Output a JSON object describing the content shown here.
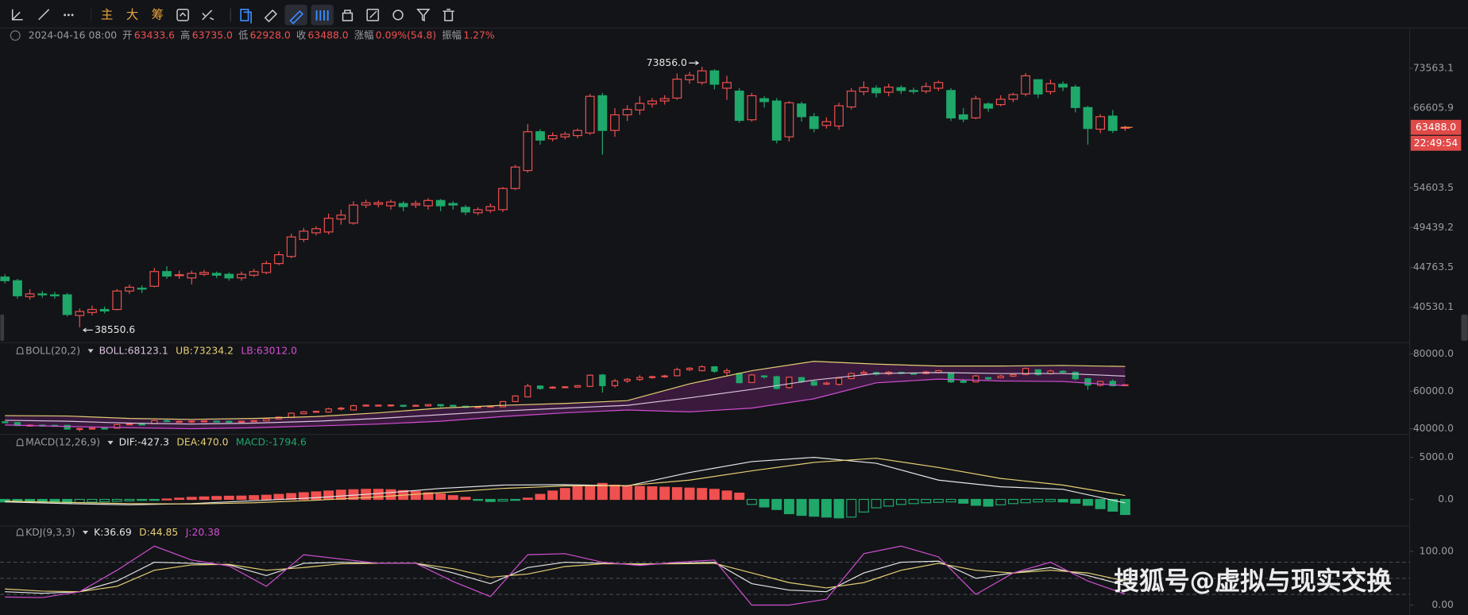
{
  "toolbar": {
    "buttons": [
      "主",
      "大",
      "筹"
    ]
  },
  "info_bar": {
    "time": "2024-04-16 08:00",
    "fields": [
      {
        "label": "开",
        "value": "63433.6"
      },
      {
        "label": "高",
        "value": "63735.0"
      },
      {
        "label": "低",
        "value": "62928.0"
      },
      {
        "label": "收",
        "value": "63488.0"
      },
      {
        "label": "涨幅",
        "value": "0.09%(54.8)"
      },
      {
        "label": "振幅",
        "value": "1.27%"
      }
    ]
  },
  "watermark": "搜狐号@虚拟与现实交换",
  "chart_data": [
    {
      "type": "candlestick",
      "log": true,
      "up_color": "#f0504f",
      "down_color": "#1fa86a",
      "ylim": [
        37190,
        77620
      ],
      "yticks": [
        73563.1,
        66605.9,
        54603.5,
        49439.2,
        44763.5,
        40530.1
      ],
      "open": [
        43700,
        43300,
        41600,
        41900,
        41800,
        41800,
        39700,
        40000,
        40300,
        40300,
        42200,
        42500,
        42700,
        44300,
        43900,
        43600,
        44000,
        44100,
        44000,
        43600,
        43900,
        44200,
        45200,
        46000,
        48000,
        48800,
        48900,
        50500,
        50000,
        52300,
        52400,
        52200,
        52500,
        52300,
        52200,
        52900,
        52500,
        52000,
        51300,
        51600,
        51700,
        54500,
        57000,
        62800,
        61700,
        62000,
        62200,
        62600,
        68700,
        63000,
        65500,
        66300,
        67300,
        67800,
        68300,
        71500,
        71000,
        73100,
        70000,
        69500,
        64700,
        68200,
        67800,
        62000,
        67300,
        65200,
        63800,
        63700,
        66800,
        69400,
        70000,
        69300,
        70100,
        69600,
        69500,
        70000,
        69600,
        65500,
        65000,
        67300,
        67200,
        68100,
        69000,
        71500,
        69400,
        70700,
        70200,
        66700,
        63200,
        65300,
        63433.6
      ],
      "high": [
        44000,
        43500,
        42400,
        42200,
        42100,
        42000,
        40400,
        40700,
        40600,
        42400,
        42900,
        42800,
        44700,
        44900,
        44400,
        44400,
        44500,
        44300,
        44200,
        44300,
        44600,
        45500,
        46600,
        48700,
        49400,
        49600,
        51200,
        51700,
        52800,
        53000,
        52900,
        53000,
        52800,
        52900,
        53200,
        53100,
        52800,
        52300,
        52000,
        52500,
        54700,
        57800,
        64000,
        63200,
        62700,
        62800,
        63300,
        69000,
        69200,
        66600,
        67100,
        68600,
        68300,
        68800,
        72600,
        72900,
        73856,
        73400,
        72200,
        70000,
        69200,
        68600,
        68300,
        67800,
        67700,
        65800,
        65100,
        67500,
        70000,
        71200,
        70500,
        70800,
        70500,
        70100,
        71000,
        71300,
        70000,
        66600,
        68700,
        67600,
        68800,
        69200,
        72700,
        71600,
        71500,
        71200,
        70600,
        67000,
        65600,
        66300,
        63735.0
      ],
      "low": [
        43000,
        41400,
        41300,
        41500,
        41400,
        39600,
        38550.6,
        39700,
        39900,
        40200,
        41900,
        42000,
        42600,
        43500,
        43500,
        42900,
        43800,
        43600,
        43300,
        43300,
        43700,
        44000,
        45000,
        45800,
        47700,
        48500,
        48600,
        49800,
        49800,
        51900,
        52000,
        51700,
        51500,
        51900,
        51700,
        51500,
        51700,
        51000,
        51000,
        51300,
        51400,
        54300,
        56700,
        60800,
        61300,
        61600,
        61800,
        62300,
        59300,
        62000,
        64500,
        65500,
        66700,
        67200,
        68000,
        70800,
        70600,
        69800,
        68000,
        64200,
        64400,
        66700,
        61000,
        61300,
        64400,
        62700,
        63300,
        63100,
        66400,
        68800,
        68400,
        68600,
        69000,
        69000,
        69100,
        69500,
        64500,
        64300,
        64800,
        66000,
        66900,
        67600,
        68600,
        68300,
        68900,
        69500,
        65900,
        60800,
        62600,
        62600,
        62928.0
      ],
      "close": [
        43300,
        41700,
        41900,
        41800,
        41700,
        39800,
        40100,
        40300,
        40150,
        42200,
        42600,
        42400,
        44300,
        43800,
        43950,
        44100,
        44200,
        43900,
        43600,
        44000,
        44300,
        45200,
        46200,
        48300,
        49000,
        49300,
        50600,
        51000,
        52300,
        52600,
        52600,
        52700,
        52100,
        52500,
        52900,
        52200,
        52300,
        51400,
        51700,
        52100,
        54500,
        57500,
        62800,
        61500,
        62200,
        62400,
        63000,
        68600,
        63000,
        65500,
        66400,
        67400,
        67800,
        68200,
        71600,
        72300,
        73100,
        70700,
        71000,
        64600,
        68700,
        67700,
        61500,
        67500,
        65200,
        63300,
        64400,
        67000,
        69500,
        70100,
        69200,
        70200,
        69600,
        69500,
        70300,
        71000,
        65000,
        64800,
        68200,
        66600,
        68100,
        68900,
        72200,
        69000,
        70800,
        70200,
        66700,
        63300,
        65200,
        63000,
        63488.0
      ],
      "max_label": "73856.0",
      "min_label": "38550.6",
      "last_price_label": "63488.0",
      "countdown": "22:49:54"
    },
    {
      "type": "boll",
      "title": "BOLL(20,2)",
      "ylim": [
        38000,
        85000
      ],
      "yticks": [
        {
          "value": 80000,
          "label": "80000.0"
        },
        {
          "value": 60000,
          "label": "60000.0"
        },
        {
          "value": 40000,
          "label": "40000.0"
        }
      ],
      "x": [
        0,
        5,
        10,
        15,
        20,
        25,
        30,
        35,
        40,
        45,
        50,
        55,
        60,
        65,
        70,
        75,
        80,
        85,
        90
      ],
      "series": [
        {
          "name": "BOLL:68123.1",
          "color": "#d9c2dc",
          "values": [
            44500,
            44000,
            43000,
            42500,
            43000,
            44000,
            45500,
            47500,
            49500,
            51000,
            52500,
            56500,
            61000,
            66000,
            69500,
            70000,
            69500,
            69500,
            68123.1
          ]
        },
        {
          "name": "UB:73234.2",
          "color": "#e6cf73",
          "values": [
            47000,
            46800,
            45500,
            45000,
            45500,
            46500,
            48500,
            51000,
            52500,
            53500,
            55000,
            64000,
            71000,
            76000,
            74500,
            73500,
            73500,
            73800,
            73234.2
          ]
        },
        {
          "name": "LB:63012.0",
          "color": "#d24fd2",
          "values": [
            42000,
            41200,
            40500,
            40000,
            40500,
            41500,
            42500,
            44000,
            46500,
            48500,
            50000,
            49000,
            51000,
            56000,
            64500,
            66500,
            65500,
            65200,
            63012.0
          ]
        }
      ]
    },
    {
      "type": "macd",
      "title": "MACD(12,26,9)",
      "ylim": [
        -2950,
        6850
      ],
      "yticks": [
        {
          "value": 5000,
          "label": "5000.0"
        },
        {
          "value": 0,
          "label": "0.0"
        }
      ],
      "x": [
        0,
        5,
        10,
        15,
        20,
        25,
        30,
        35,
        40,
        45,
        50,
        55,
        60,
        65,
        70,
        75,
        80,
        85,
        90
      ],
      "series": [
        {
          "name": "DIF:-427.3",
          "color": "#e6e6e6",
          "values": [
            -300,
            -500,
            -650,
            -500,
            -150,
            200,
            700,
            1300,
            1700,
            1750,
            1600,
            3200,
            4500,
            5000,
            4300,
            2300,
            1500,
            1200,
            -427.3
          ]
        },
        {
          "name": "DEA:470.0",
          "color": "#e6cf73",
          "values": [
            -200,
            -350,
            -500,
            -550,
            -400,
            -100,
            300,
            800,
            1300,
            1600,
            1650,
            2300,
            3400,
            4400,
            4900,
            3800,
            2500,
            1700,
            470.0
          ]
        }
      ],
      "histogram": {
        "name": "MACD:-1794.6",
        "up_color": "#f0504f",
        "down_color": "#1fa86a",
        "values": [
          -300,
          -320,
          -350,
          -380,
          -400,
          -420,
          -380,
          -330,
          -280,
          -230,
          -180,
          -120,
          -60,
          50,
          150,
          250,
          300,
          350,
          380,
          400,
          450,
          500,
          600,
          700,
          800,
          900,
          1000,
          1100,
          1150,
          1200,
          1200,
          1150,
          1050,
          950,
          800,
          650,
          450,
          250,
          -100,
          -250,
          -200,
          -80,
          150,
          600,
          1000,
          1300,
          1500,
          1650,
          1900,
          1700,
          1600,
          1550,
          1500,
          1450,
          1400,
          1350,
          1300,
          1200,
          1000,
          750,
          -600,
          -900,
          -1200,
          -1700,
          -1900,
          -2000,
          -2100,
          -2200,
          -2100,
          -1500,
          -1000,
          -800,
          -600,
          -500,
          -400,
          -350,
          -300,
          -450,
          -700,
          -800,
          -650,
          -500,
          -400,
          -300,
          -250,
          -300,
          -450,
          -700,
          -1100,
          -1400,
          -1794.6
        ]
      }
    },
    {
      "type": "kdj",
      "title": "KDJ(9,3,3)",
      "ylim": [
        -15,
        130
      ],
      "yticks": [
        {
          "value": 100,
          "label": "100.00"
        },
        {
          "value": 0,
          "label": "0.00"
        }
      ],
      "levels": [
        80,
        50,
        20
      ],
      "x": [
        0,
        3,
        6,
        9,
        12,
        15,
        18,
        21,
        24,
        27,
        30,
        33,
        36,
        39,
        42,
        45,
        48,
        51,
        54,
        57,
        60,
        63,
        66,
        69,
        72,
        75,
        78,
        81,
        84,
        87,
        90
      ],
      "series": [
        {
          "name": "K:36.69",
          "color": "#e6e6e6",
          "values": [
            25,
            22,
            25,
            45,
            80,
            78,
            75,
            55,
            78,
            80,
            78,
            78,
            60,
            40,
            70,
            80,
            78,
            76,
            78,
            80,
            40,
            28,
            25,
            60,
            80,
            82,
            50,
            60,
            70,
            55,
            36.69
          ]
        },
        {
          "name": "D:44.85",
          "color": "#e6cf73",
          "values": [
            30,
            26,
            25,
            35,
            65,
            75,
            76,
            65,
            70,
            77,
            78,
            78,
            68,
            52,
            58,
            72,
            77,
            77,
            77,
            78,
            60,
            42,
            32,
            42,
            65,
            78,
            65,
            60,
            65,
            60,
            44.85
          ]
        },
        {
          "name": "J:20.38",
          "color": "#d24fd2",
          "values": [
            15,
            14,
            25,
            65,
            110,
            84,
            73,
            35,
            94,
            86,
            78,
            78,
            44,
            16,
            94,
            96,
            80,
            74,
            80,
            84,
            0,
            0,
            11,
            96,
            110,
            90,
            20,
            60,
            80,
            45,
            20.38
          ]
        }
      ]
    }
  ]
}
